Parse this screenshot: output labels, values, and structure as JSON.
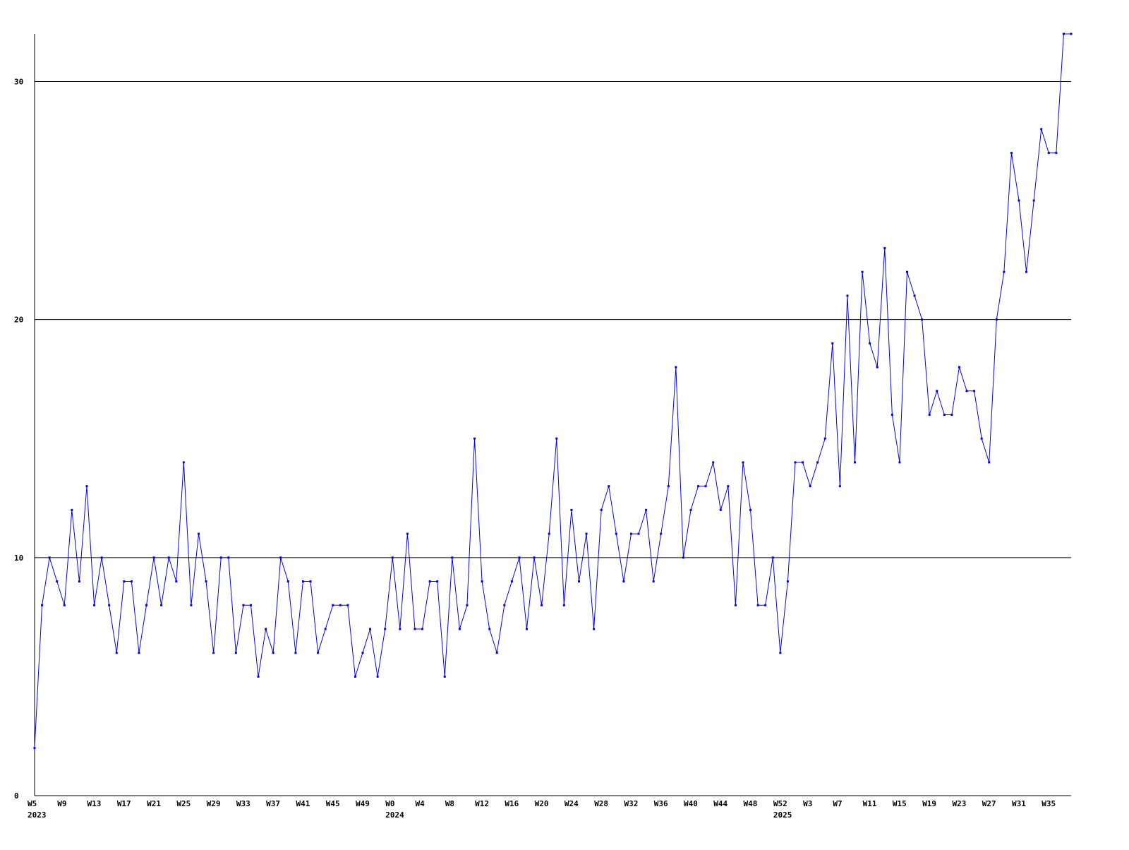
{
  "chart_data": {
    "type": "line",
    "categories": [
      "W5",
      null,
      null,
      null,
      "W9",
      null,
      null,
      null,
      "W13",
      null,
      null,
      null,
      "W17",
      null,
      null,
      null,
      "W21",
      null,
      null,
      null,
      "W25",
      null,
      null,
      null,
      "W29",
      null,
      null,
      null,
      "W33",
      null,
      null,
      null,
      "W37",
      null,
      null,
      null,
      "W41",
      null,
      null,
      null,
      "W45",
      null,
      null,
      null,
      "W49",
      null,
      null,
      null,
      "W0",
      null,
      null,
      null,
      "W4",
      null,
      null,
      null,
      "W8",
      null,
      null,
      null,
      "W12",
      null,
      null,
      null,
      "W16",
      null,
      null,
      null,
      "W20",
      null,
      null,
      null,
      "W24",
      null,
      null,
      null,
      "W28",
      null,
      null,
      null,
      "W32",
      null,
      null,
      null,
      "W36",
      null,
      null,
      null,
      "W40",
      null,
      null,
      null,
      "W44",
      null,
      null,
      null,
      "W48",
      null,
      null,
      null,
      "W52",
      null,
      null,
      null,
      "W3",
      null,
      null,
      null,
      "W7",
      null,
      null,
      null,
      "W11",
      null,
      null,
      null,
      "W15",
      null,
      null,
      null,
      "W19",
      null,
      null,
      null,
      "W23",
      null,
      null,
      null,
      "W27",
      null,
      null,
      null,
      "W31",
      null,
      null,
      null,
      "W35",
      null,
      null,
      null
    ],
    "year_labels": [
      "2023",
      null,
      null,
      null,
      null,
      null,
      null,
      null,
      null,
      null,
      null,
      null,
      null,
      null,
      null,
      null,
      null,
      null,
      null,
      null,
      null,
      null,
      null,
      null,
      null,
      null,
      null,
      null,
      null,
      null,
      null,
      null,
      null,
      null,
      null,
      null,
      null,
      null,
      null,
      null,
      null,
      null,
      null,
      null,
      null,
      null,
      null,
      null,
      "2024",
      null,
      null,
      null,
      null,
      null,
      null,
      null,
      null,
      null,
      null,
      null,
      null,
      null,
      null,
      null,
      null,
      null,
      null,
      null,
      null,
      null,
      null,
      null,
      null,
      null,
      null,
      null,
      null,
      null,
      null,
      null,
      null,
      null,
      null,
      null,
      null,
      null,
      null,
      null,
      null,
      null,
      null,
      null,
      null,
      null,
      null,
      null,
      null,
      null,
      null,
      null,
      "2025",
      null,
      null,
      null,
      null,
      null,
      null,
      null,
      null,
      null,
      null,
      null,
      null,
      null,
      null,
      null,
      null,
      null,
      null,
      null,
      null,
      null,
      null,
      null,
      null,
      null,
      null,
      null,
      null,
      null,
      null,
      null,
      null,
      null,
      null,
      null,
      null,
      null,
      null,
      null
    ],
    "series": [
      {
        "color": "#0000ff",
        "values": [
          2,
          8,
          10,
          9,
          8,
          12,
          9,
          13,
          8,
          10,
          8,
          6,
          9,
          9,
          6,
          8,
          10,
          8,
          10,
          9,
          14,
          8,
          11,
          9,
          6,
          10,
          10,
          6,
          8,
          8,
          5,
          7,
          6,
          10,
          9,
          6,
          9,
          9,
          6,
          7,
          8,
          8,
          8,
          5,
          6,
          7,
          5,
          7,
          10,
          7,
          11,
          7,
          7,
          9,
          9,
          5,
          10,
          7,
          8,
          15,
          9,
          7,
          6,
          8,
          9,
          10,
          7,
          10,
          8,
          11,
          15,
          8,
          12,
          9,
          11,
          7,
          12,
          13,
          11,
          9,
          11,
          11,
          12,
          9,
          11,
          13,
          18,
          10,
          12,
          13,
          13,
          14,
          12,
          13,
          8,
          14,
          12,
          8,
          8,
          10,
          6,
          9,
          14,
          14,
          13,
          14,
          15,
          19,
          13,
          21,
          14,
          22,
          19,
          18,
          23,
          16,
          14,
          22,
          21,
          20,
          16,
          17,
          16,
          16,
          18,
          17,
          17,
          15,
          14,
          20,
          22,
          27,
          25,
          22,
          25,
          28,
          27,
          27,
          32,
          32
        ]
      }
    ],
    "ylim": [
      0,
      32
    ],
    "yticks": [
      0,
      10,
      20,
      30
    ],
    "grid": true
  }
}
